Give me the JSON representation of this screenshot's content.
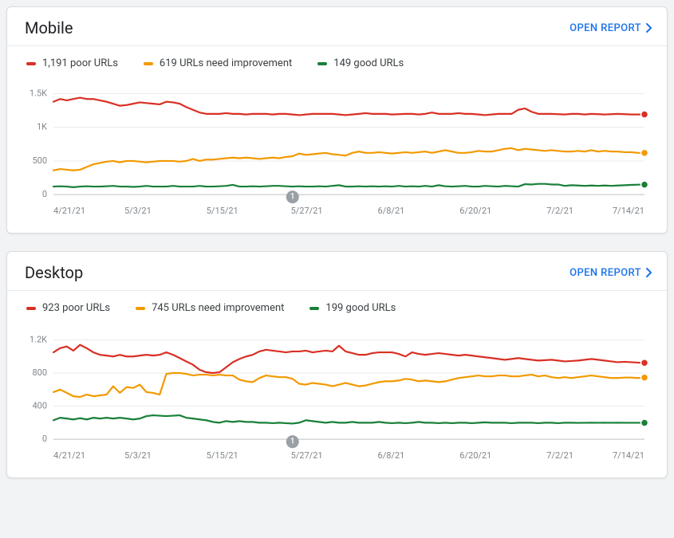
{
  "colors": {
    "poor": "#d93025",
    "needs": "#f29900",
    "good": "#188038",
    "link": "#1a73e8",
    "text": "#202124",
    "tick": "#80868b",
    "grid": "#e8eaed",
    "baseline": "#bdc1c6",
    "marker": "#9aa0a6",
    "card_bg": "#ffffff",
    "page_bg": "#f1f3f4"
  },
  "typography": {
    "title_fontsize": 20,
    "legend_fontsize": 13,
    "tick_fontsize": 11,
    "link_fontsize": 13
  },
  "open_report_label": "OPEN REPORT",
  "event_marker_label": "1",
  "x_categories": [
    "4/21/21",
    "5/3/21",
    "5/15/21",
    "5/27/21",
    "6/8/21",
    "6/20/21",
    "7/2/21",
    "7/14/21"
  ],
  "n_points": 90,
  "event_marker_index": 36,
  "panels": [
    {
      "id": "mobile",
      "title": "Mobile",
      "y_ticks": [
        0,
        500,
        1000,
        1500
      ],
      "y_tick_labels": [
        "0",
        "500",
        "1K",
        "1.5K"
      ],
      "y_max": 1600,
      "legend": [
        {
          "key": "poor",
          "label": "1,191 poor URLs"
        },
        {
          "key": "needs",
          "label": "619 URLs need improvement"
        },
        {
          "key": "good",
          "label": "149 good URLs"
        }
      ],
      "series": {
        "poor": [
          1380,
          1420,
          1400,
          1420,
          1440,
          1420,
          1420,
          1400,
          1380,
          1350,
          1320,
          1330,
          1350,
          1370,
          1360,
          1350,
          1340,
          1380,
          1370,
          1350,
          1300,
          1260,
          1220,
          1200,
          1200,
          1200,
          1210,
          1200,
          1200,
          1190,
          1200,
          1200,
          1200,
          1190,
          1200,
          1200,
          1190,
          1180,
          1190,
          1200,
          1200,
          1200,
          1200,
          1190,
          1180,
          1190,
          1200,
          1210,
          1200,
          1200,
          1200,
          1190,
          1195,
          1200,
          1200,
          1190,
          1200,
          1220,
          1200,
          1200,
          1200,
          1210,
          1200,
          1200,
          1190,
          1180,
          1190,
          1200,
          1200,
          1200,
          1260,
          1280,
          1230,
          1200,
          1200,
          1200,
          1195,
          1190,
          1200,
          1200,
          1190,
          1200,
          1195,
          1190,
          1195,
          1200,
          1195,
          1190,
          1190,
          1191
        ],
        "needs": [
          360,
          380,
          370,
          360,
          370,
          410,
          450,
          470,
          490,
          500,
          480,
          500,
          500,
          490,
          480,
          490,
          500,
          500,
          500,
          490,
          500,
          530,
          500,
          520,
          520,
          530,
          540,
          550,
          540,
          550,
          540,
          530,
          540,
          550,
          540,
          560,
          570,
          610,
          590,
          600,
          610,
          620,
          600,
          590,
          580,
          620,
          640,
          620,
          620,
          630,
          620,
          610,
          620,
          630,
          620,
          630,
          640,
          620,
          640,
          660,
          640,
          620,
          620,
          630,
          650,
          640,
          640,
          660,
          680,
          690,
          660,
          680,
          670,
          660,
          650,
          660,
          650,
          640,
          640,
          650,
          640,
          660,
          640,
          650,
          640,
          640,
          630,
          630,
          620,
          619
        ],
        "good": [
          120,
          125,
          120,
          110,
          120,
          125,
          120,
          120,
          125,
          130,
          120,
          120,
          115,
          120,
          130,
          120,
          120,
          120,
          130,
          120,
          120,
          120,
          130,
          120,
          120,
          125,
          130,
          145,
          120,
          120,
          125,
          120,
          125,
          130,
          130,
          125,
          120,
          125,
          120,
          120,
          125,
          120,
          130,
          140,
          120,
          120,
          125,
          120,
          125,
          120,
          125,
          120,
          130,
          120,
          125,
          120,
          130,
          120,
          140,
          125,
          120,
          125,
          130,
          120,
          120,
          130,
          125,
          120,
          130,
          125,
          120,
          155,
          150,
          160,
          160,
          150,
          150,
          130,
          140,
          135,
          130,
          135,
          130,
          135,
          130,
          135,
          140,
          145,
          148,
          149
        ]
      },
      "end_dots": {
        "poor": 1191,
        "needs": 619,
        "good": 149
      }
    },
    {
      "id": "desktop",
      "title": "Desktop",
      "y_ticks": [
        0,
        400,
        800,
        1200
      ],
      "y_tick_labels": [
        "0",
        "400",
        "800",
        "1.2K"
      ],
      "y_max": 1300,
      "legend": [
        {
          "key": "poor",
          "label": "923 poor URLs"
        },
        {
          "key": "needs",
          "label": "745 URLs need improvement"
        },
        {
          "key": "good",
          "label": "199 good URLs"
        }
      ],
      "series": {
        "poor": [
          1050,
          1100,
          1120,
          1070,
          1140,
          1100,
          1050,
          1020,
          1010,
          1000,
          1020,
          1000,
          1000,
          1010,
          1020,
          1010,
          1020,
          1050,
          1020,
          980,
          940,
          900,
          840,
          810,
          800,
          810,
          870,
          930,
          970,
          1000,
          1020,
          1060,
          1080,
          1070,
          1060,
          1050,
          1060,
          1060,
          1070,
          1050,
          1060,
          1070,
          1060,
          1130,
          1060,
          1040,
          1020,
          1020,
          1040,
          1050,
          1050,
          1050,
          1030,
          1000,
          1050,
          1030,
          1020,
          1030,
          1040,
          1030,
          1020,
          1010,
          1020,
          1010,
          1000,
          990,
          980,
          970,
          960,
          970,
          980,
          970,
          960,
          950,
          955,
          960,
          950,
          940,
          945,
          950,
          960,
          970,
          960,
          950,
          940,
          930,
          935,
          930,
          925,
          923
        ],
        "needs": [
          570,
          600,
          560,
          520,
          510,
          540,
          520,
          530,
          540,
          640,
          560,
          630,
          620,
          660,
          570,
          560,
          540,
          790,
          800,
          800,
          790,
          770,
          780,
          780,
          770,
          780,
          770,
          770,
          720,
          700,
          690,
          740,
          770,
          760,
          750,
          750,
          730,
          670,
          660,
          680,
          670,
          660,
          640,
          660,
          680,
          660,
          640,
          650,
          670,
          690,
          700,
          700,
          710,
          730,
          720,
          700,
          710,
          700,
          690,
          700,
          720,
          740,
          750,
          760,
          770,
          760,
          760,
          770,
          770,
          760,
          760,
          770,
          780,
          760,
          770,
          750,
          740,
          750,
          740,
          750,
          760,
          770,
          760,
          750,
          740,
          740,
          745,
          745,
          740,
          745
        ],
        "good": [
          230,
          260,
          250,
          240,
          255,
          240,
          260,
          250,
          260,
          250,
          260,
          250,
          240,
          250,
          280,
          290,
          285,
          280,
          285,
          290,
          260,
          250,
          240,
          230,
          210,
          200,
          220,
          210,
          220,
          210,
          210,
          200,
          200,
          195,
          200,
          195,
          190,
          200,
          230,
          220,
          210,
          200,
          210,
          200,
          200,
          210,
          200,
          200,
          200,
          210,
          200,
          195,
          200,
          195,
          200,
          210,
          200,
          200,
          195,
          200,
          195,
          200,
          200,
          195,
          200,
          205,
          200,
          200,
          200,
          195,
          200,
          200,
          200,
          195,
          200,
          200,
          195,
          200,
          200,
          198,
          199,
          200,
          199,
          200,
          199,
          200,
          199,
          199,
          199,
          199
        ]
      },
      "end_dots": {
        "poor": 923,
        "needs": 745,
        "good": 199
      }
    }
  ]
}
